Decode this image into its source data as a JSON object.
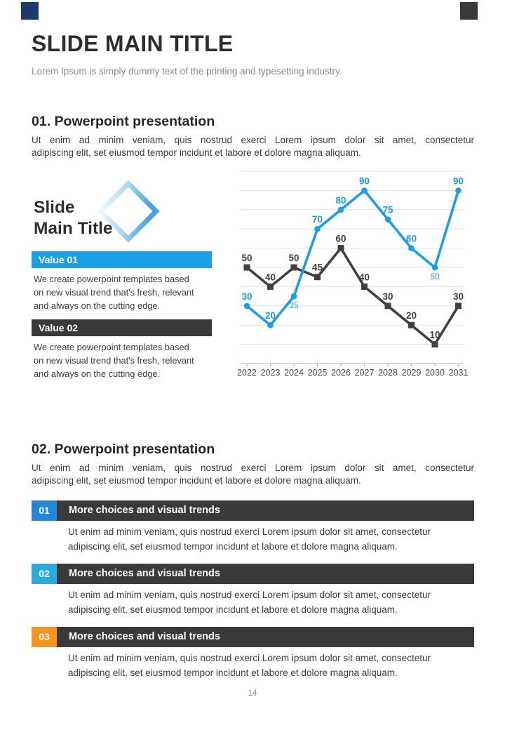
{
  "page": {
    "number": "14"
  },
  "decor": {
    "left_square_color": "#1E3A68",
    "right_square_color": "#3A3A3A"
  },
  "header": {
    "title": "SLIDE MAIN TITLE",
    "subtitle": "Lorem Ipsum is simply dummy text of the printing and typesetting industry."
  },
  "section1": {
    "heading": "01. Powerpoint presentation",
    "body_line1": "Ut enim ad minim veniam, quis nostrud exerci  Lorem ipsum dolor sit amet, consectetur",
    "body_line2": "adipiscing elit, set eiusmod tempor incidunt et labore et dolore magna aliquam.",
    "panel": {
      "title_line1": "Slide",
      "title_line2": "Main Title",
      "values": [
        {
          "label": "Value 01",
          "color": "#1D9FE5",
          "lines": [
            "We create powerpoint templates based",
            "on new visual trend that's fresh, relevant",
            "and always on the cutting edge."
          ]
        },
        {
          "label": "Value 02",
          "color": "#3A3A3A",
          "lines": [
            "We create powerpoint templates based",
            "on new visual trend that's fresh, relevant",
            "and always on the cutting edge."
          ]
        }
      ]
    }
  },
  "section2": {
    "heading": "02. Powerpoint presentation",
    "body_line1": "Ut enim ad minim veniam, quis nostrud exerci  Lorem ipsum dolor sit amet, consectetur",
    "body_line2": "adipiscing elit, set eiusmod tempor incidunt et labore et dolore magna aliquam.",
    "row_bar_color": "#3A3A3A",
    "rows": [
      {
        "number": "01",
        "badge_color": "#1F86D8",
        "title": "More choices and visual trends",
        "body_line1": "Ut enim ad minim veniam, quis nostrud exerci  Lorem ipsum dolor sit amet, consectetur",
        "body_line2": "adipiscing elit, set eiusmod tempor incidunt et labore et dolore magna aliquam."
      },
      {
        "number": "02",
        "badge_color": "#29ABE2",
        "title": "More choices and visual trends",
        "body_line1": "Ut enim ad minim veniam, quis nostrud exerci  Lorem ipsum dolor sit amet, consectetur",
        "body_line2": "adipiscing elit, set eiusmod tempor incidunt et labore et dolore magna aliquam."
      },
      {
        "number": "03",
        "badge_color": "#F7941D",
        "title": "More choices and visual trends",
        "body_line1": "Ut enim ad minim veniam, quis nostrud exerci  Lorem ipsum dolor sit amet, consectetur",
        "body_line2": "adipiscing elit, set eiusmod tempor incidunt et labore et dolore magna aliquam."
      }
    ]
  },
  "chart_data": {
    "type": "line",
    "title": "",
    "xlabel": "",
    "ylabel": "",
    "x": [
      "2022",
      "2023",
      "2024",
      "2025",
      "2026",
      "2027",
      "2028",
      "2029",
      "2030",
      "2031"
    ],
    "series": [
      {
        "name": "dark-series",
        "color": "#404040",
        "marker": "square",
        "values": [
          50,
          40,
          50,
          45,
          60,
          40,
          30,
          20,
          10,
          30
        ],
        "label_positions": [
          "above",
          "above",
          "above",
          "above",
          "above",
          "above",
          "above",
          "above",
          "above",
          "above"
        ]
      },
      {
        "name": "blue-series",
        "color": "#1E9CE5",
        "marker": "circle",
        "values": [
          30,
          20,
          35,
          70,
          80,
          90,
          75,
          60,
          50,
          90
        ],
        "label_positions": [
          "above",
          "above",
          "below",
          "above",
          "above",
          "above",
          "above",
          "above",
          "below",
          "above"
        ]
      }
    ],
    "ylim": [
      0,
      100
    ],
    "gridline_step": 10,
    "grid": "horizontal-only",
    "legend": "none",
    "data_labels": true,
    "axis_color": "#B3B3B3",
    "grid_color": "#E3E3E3"
  }
}
